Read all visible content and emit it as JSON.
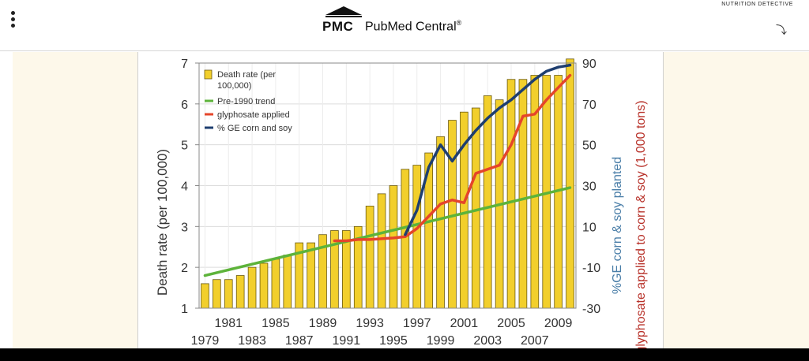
{
  "header": {
    "logo_mark": "PMC",
    "logo_name": "PubMed Central",
    "registered": "®",
    "corner_brand": "NUTRITION DETECTIVE"
  },
  "chart_data": {
    "type": "bar",
    "categories": [
      1979,
      1980,
      1981,
      1982,
      1983,
      1984,
      1985,
      1986,
      1987,
      1988,
      1989,
      1990,
      1991,
      1992,
      1993,
      1994,
      1995,
      1996,
      1997,
      1998,
      1999,
      2000,
      2001,
      2002,
      2003,
      2004,
      2005,
      2006,
      2007,
      2008,
      2009,
      2010
    ],
    "x_tick_labels_top": [
      "1981",
      "1985",
      "1989",
      "1993",
      "1997",
      "2001",
      "2005",
      "2009"
    ],
    "x_tick_labels_bottom": [
      "1979",
      "1983",
      "1987",
      "1991",
      "1995",
      "1999",
      "2003",
      "2007"
    ],
    "ylabel": "Death rate (per 100,000)",
    "ylim": [
      1,
      7
    ],
    "y_ticks": [
      1,
      2,
      3,
      4,
      5,
      6,
      7
    ],
    "y2label": "%GE corn & soy planted",
    "y2_ticks": [
      -30,
      -10,
      10,
      30,
      50,
      70,
      90
    ],
    "y2lim": [
      -30,
      90
    ],
    "y3label": "glyphosate applied to corn & soy (1,000 tons)",
    "grid": true,
    "legend_position": "top-left",
    "series": [
      {
        "name": "Death rate (per 100,000)",
        "kind": "bar",
        "color": "#f2cf2c",
        "values": [
          1.6,
          1.7,
          1.7,
          1.8,
          2.0,
          2.1,
          2.2,
          2.3,
          2.6,
          2.6,
          2.8,
          2.9,
          2.9,
          3.0,
          3.5,
          3.8,
          4.0,
          4.4,
          4.5,
          4.8,
          5.2,
          5.6,
          5.8,
          5.9,
          6.2,
          6.1,
          6.6,
          6.6,
          6.7,
          6.7,
          6.7,
          7.1
        ]
      },
      {
        "name": "Pre-1990 trend",
        "kind": "line",
        "color": "#5db33a",
        "x": [
          1979,
          2010
        ],
        "values": [
          1.8,
          3.95
        ]
      },
      {
        "name": "glyphosate applied",
        "kind": "line",
        "color": "#e5452a",
        "x": [
          1990,
          1991,
          1992,
          1993,
          1994,
          1995,
          1996,
          1997,
          1998,
          1999,
          2000,
          2001,
          2002,
          2003,
          2004,
          2005,
          2006,
          2007,
          2008,
          2009,
          2010
        ],
        "values": [
          2.65,
          2.65,
          2.68,
          2.68,
          2.7,
          2.72,
          2.75,
          2.95,
          3.25,
          3.55,
          3.65,
          3.58,
          4.3,
          4.4,
          4.5,
          5.0,
          5.7,
          5.75,
          6.1,
          6.4,
          6.7
        ]
      },
      {
        "name": "% GE corn and soy",
        "kind": "line",
        "color": "#1e3e6f",
        "x": [
          1996,
          1997,
          1998,
          1999,
          2000,
          2001,
          2002,
          2003,
          2004,
          2005,
          2006,
          2007,
          2008,
          2009,
          2010
        ],
        "values": [
          2.8,
          3.4,
          4.45,
          5.0,
          4.6,
          5.0,
          5.35,
          5.65,
          5.9,
          6.1,
          6.35,
          6.6,
          6.8,
          6.9,
          6.95
        ]
      }
    ]
  }
}
